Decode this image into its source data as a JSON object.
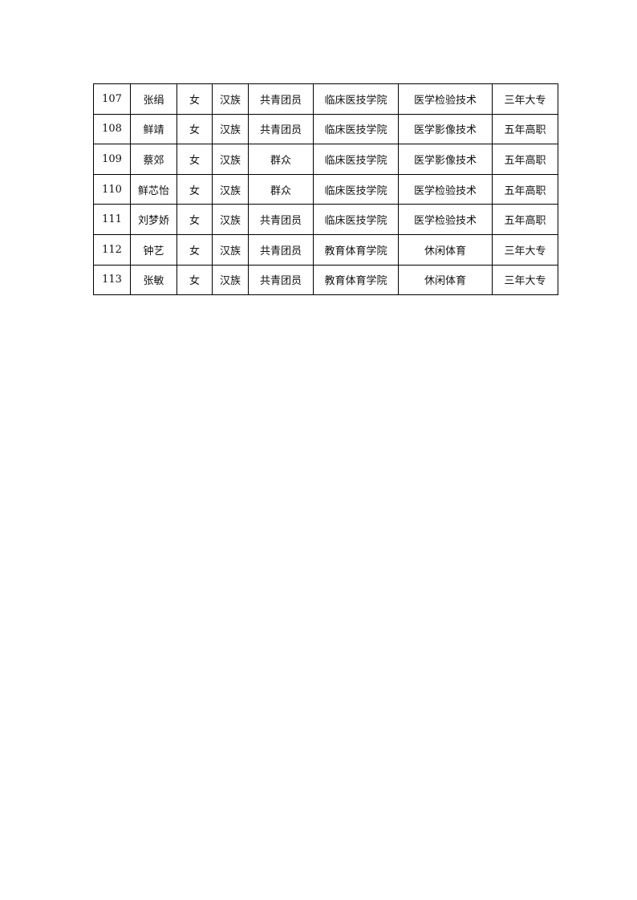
{
  "table": {
    "rows": [
      [
        "107",
        "张绢",
        "女",
        "汉族",
        "共青团员",
        "临床医技学院",
        "医学检验技术",
        "三年大专"
      ],
      [
        "108",
        "鲜靖",
        "女",
        "汉族",
        "共青团员",
        "临床医技学院",
        "医学影像技术",
        "五年高职"
      ],
      [
        "109",
        "蔡郊",
        "女",
        "汉族",
        "群众",
        "临床医技学院",
        "医学影像技术",
        "五年高职"
      ],
      [
        "110",
        "鲜芯怡",
        "女",
        "汉族",
        "群众",
        "临床医技学院",
        "医学检验技术",
        "五年高职"
      ],
      [
        "111",
        "刘梦娇",
        "女",
        "汉族",
        "共青团员",
        "临床医技学院",
        "医学检验技术",
        "五年高职"
      ],
      [
        "112",
        "钟艺",
        "女",
        "汉族",
        "共青团员",
        "教育体育学院",
        "休闲体育",
        "三年大专"
      ],
      [
        "113",
        "张敏",
        "女",
        "汉族",
        "共青团员",
        "教育体育学院",
        "休闲体育",
        "三年大专"
      ]
    ]
  }
}
